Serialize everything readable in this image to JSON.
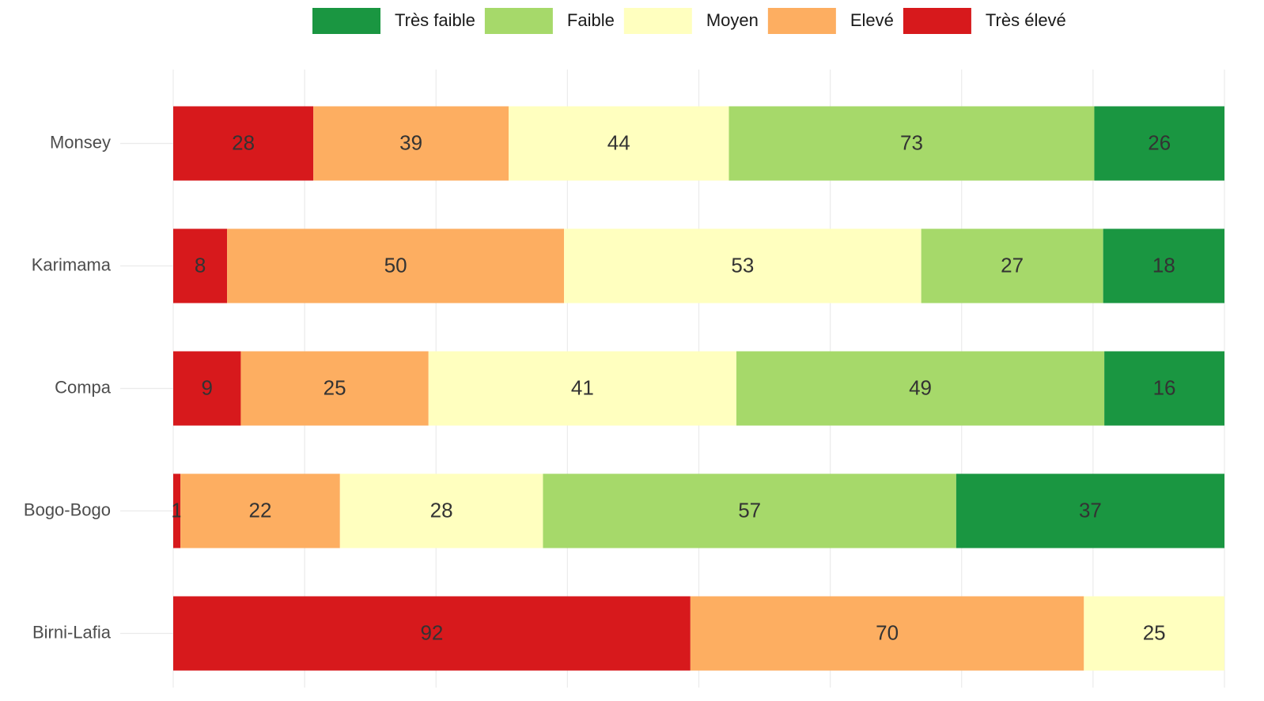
{
  "chart_data": {
    "type": "bar",
    "orientation": "horizontal",
    "stack": "fill",
    "categories": [
      "Monsey",
      "Karimama",
      "Compa",
      "Bogo-Bogo",
      "Birni-Lafia"
    ],
    "series": [
      {
        "name": "Très faible",
        "color": "#1a9641",
        "values": [
          26,
          18,
          16,
          37,
          null
        ]
      },
      {
        "name": "Faible",
        "color": "#a6d96a",
        "values": [
          73,
          27,
          49,
          57,
          null
        ]
      },
      {
        "name": "Moyen",
        "color": "#ffffbf",
        "values": [
          44,
          53,
          41,
          28,
          25
        ]
      },
      {
        "name": "Elevé",
        "color": "#fdae61",
        "values": [
          39,
          50,
          25,
          22,
          70
        ]
      },
      {
        "name": "Très élevé",
        "color": "#d7191c",
        "values": [
          28,
          8,
          9,
          1,
          92
        ]
      }
    ],
    "legend": "top",
    "grid": true
  }
}
